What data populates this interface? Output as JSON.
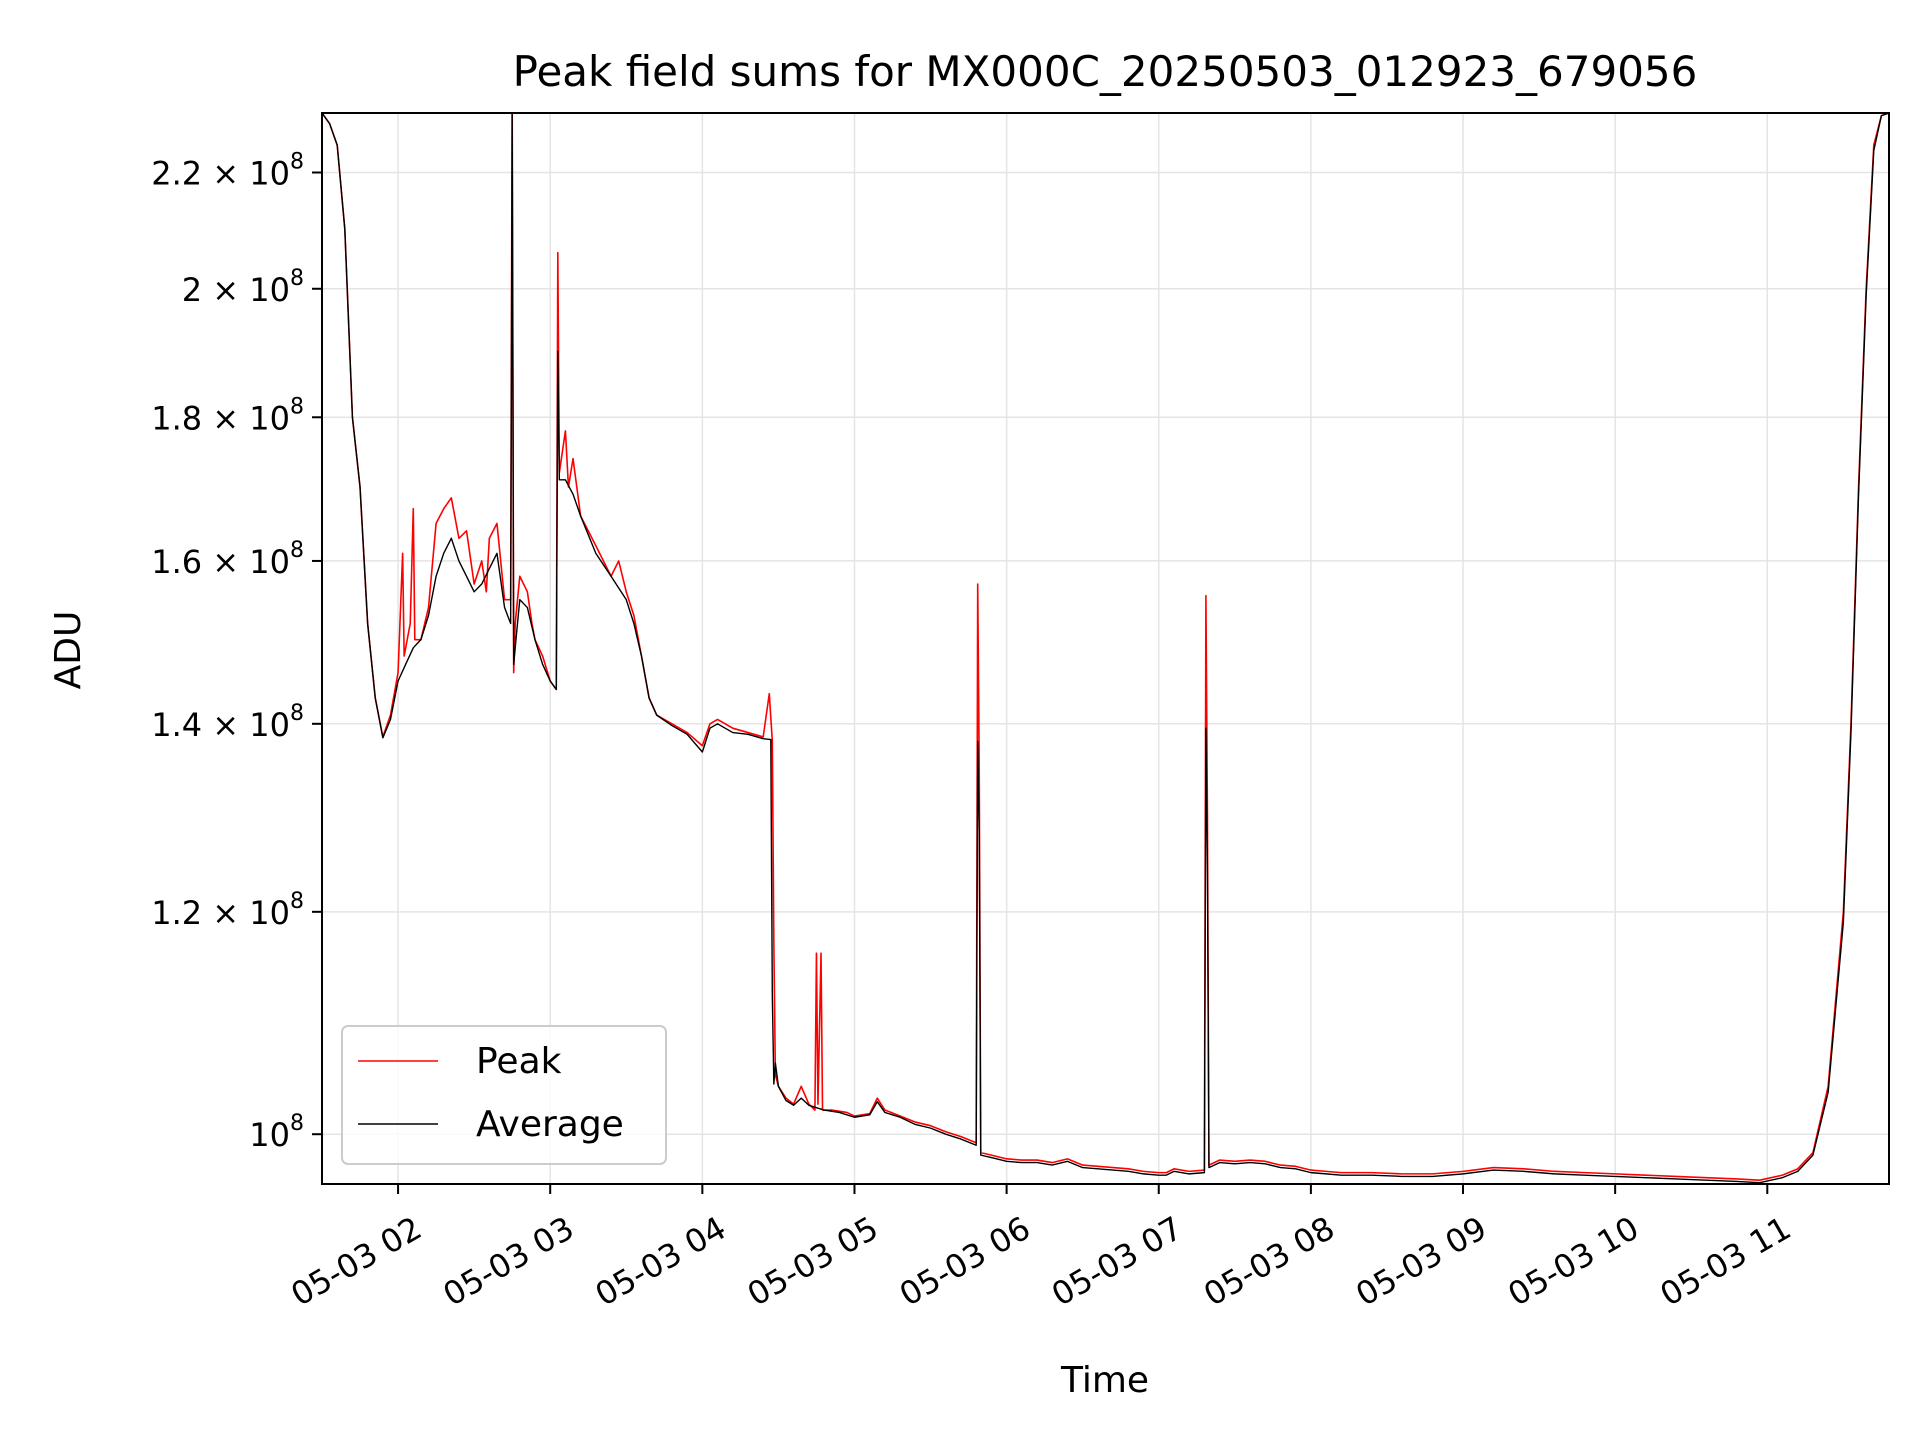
{
  "chart_data": {
    "type": "line",
    "title": "Peak field sums for MX000C_20250503_012923_679056",
    "xlabel": "Time",
    "ylabel": "ADU",
    "y_scale": "log",
    "ylim": [
      96000000,
      231000000
    ],
    "xlim_hours": [
      1.5,
      11.8
    ],
    "grid": true,
    "legend_position": "lower-left",
    "x_ticks": [
      {
        "hour": 2,
        "label": "05-03 02"
      },
      {
        "hour": 3,
        "label": "05-03 03"
      },
      {
        "hour": 4,
        "label": "05-03 04"
      },
      {
        "hour": 5,
        "label": "05-03 05"
      },
      {
        "hour": 6,
        "label": "05-03 06"
      },
      {
        "hour": 7,
        "label": "05-03 07"
      },
      {
        "hour": 8,
        "label": "05-03 08"
      },
      {
        "hour": 9,
        "label": "05-03 09"
      },
      {
        "hour": 10,
        "label": "05-03 10"
      },
      {
        "hour": 11,
        "label": "05-03 11"
      }
    ],
    "y_ticks": [
      {
        "value": 100000000,
        "mantissa": "",
        "exponent": "8"
      },
      {
        "value": 120000000,
        "mantissa": "1.2",
        "exponent": "8"
      },
      {
        "value": 140000000,
        "mantissa": "1.4",
        "exponent": "8"
      },
      {
        "value": 160000000,
        "mantissa": "1.6",
        "exponent": "8"
      },
      {
        "value": 180000000,
        "mantissa": "1.8",
        "exponent": "8"
      },
      {
        "value": 200000000,
        "mantissa": "2",
        "exponent": "8"
      },
      {
        "value": 220000000,
        "mantissa": "2.2",
        "exponent": "8"
      }
    ],
    "series": [
      {
        "name": "Peak",
        "color": "#ff0000",
        "points": [
          [
            1.5,
            231000000
          ],
          [
            1.55,
            229000000
          ],
          [
            1.6,
            225000000
          ],
          [
            1.65,
            210000000
          ],
          [
            1.7,
            180000000
          ],
          [
            1.75,
            170000000
          ],
          [
            1.8,
            152000000
          ],
          [
            1.85,
            143000000
          ],
          [
            1.9,
            138500000
          ],
          [
            1.95,
            141000000
          ],
          [
            2.0,
            146000000
          ],
          [
            2.03,
            161000000
          ],
          [
            2.04,
            148000000
          ],
          [
            2.08,
            152000000
          ],
          [
            2.1,
            167000000
          ],
          [
            2.11,
            150000000
          ],
          [
            2.15,
            150000000
          ],
          [
            2.2,
            154000000
          ],
          [
            2.25,
            165000000
          ],
          [
            2.3,
            167000000
          ],
          [
            2.35,
            168500000
          ],
          [
            2.4,
            163000000
          ],
          [
            2.45,
            164000000
          ],
          [
            2.5,
            157000000
          ],
          [
            2.55,
            160000000
          ],
          [
            2.58,
            156000000
          ],
          [
            2.6,
            163000000
          ],
          [
            2.65,
            165000000
          ],
          [
            2.7,
            155000000
          ],
          [
            2.72,
            155000000
          ],
          [
            2.74,
            155000000
          ],
          [
            2.75,
            235000000
          ],
          [
            2.76,
            146000000
          ],
          [
            2.77,
            152000000
          ],
          [
            2.8,
            158000000
          ],
          [
            2.85,
            156000000
          ],
          [
            2.88,
            152000000
          ],
          [
            2.9,
            150000000
          ],
          [
            2.95,
            148000000
          ],
          [
            3.0,
            145000000
          ],
          [
            3.04,
            144000000
          ],
          [
            3.05,
            206000000
          ],
          [
            3.06,
            172000000
          ],
          [
            3.1,
            178000000
          ],
          [
            3.12,
            170000000
          ],
          [
            3.15,
            174000000
          ],
          [
            3.2,
            166000000
          ],
          [
            3.3,
            162000000
          ],
          [
            3.4,
            158000000
          ],
          [
            3.45,
            160000000
          ],
          [
            3.5,
            156000000
          ],
          [
            3.55,
            153000000
          ],
          [
            3.6,
            148000000
          ],
          [
            3.65,
            143000000
          ],
          [
            3.7,
            141000000
          ],
          [
            3.8,
            140000000
          ],
          [
            3.9,
            139000000
          ],
          [
            4.0,
            137500000
          ],
          [
            4.05,
            140000000
          ],
          [
            4.1,
            140500000
          ],
          [
            4.2,
            139500000
          ],
          [
            4.3,
            139000000
          ],
          [
            4.4,
            138500000
          ],
          [
            4.44,
            143500000
          ],
          [
            4.46,
            138000000
          ],
          [
            4.47,
            117000000
          ],
          [
            4.48,
            105000000
          ],
          [
            4.5,
            104000000
          ],
          [
            4.55,
            103000000
          ],
          [
            4.6,
            102500000
          ],
          [
            4.65,
            104000000
          ],
          [
            4.7,
            102500000
          ],
          [
            4.74,
            102000000
          ],
          [
            4.75,
            116000000
          ],
          [
            4.76,
            102500000
          ],
          [
            4.78,
            116000000
          ],
          [
            4.79,
            102000000
          ],
          [
            4.85,
            102000000
          ],
          [
            4.95,
            101800000
          ],
          [
            5.0,
            101500000
          ],
          [
            5.1,
            101700000
          ],
          [
            5.15,
            103000000
          ],
          [
            5.2,
            102000000
          ],
          [
            5.3,
            101500000
          ],
          [
            5.4,
            101000000
          ],
          [
            5.5,
            100700000
          ],
          [
            5.6,
            100200000
          ],
          [
            5.7,
            99800000
          ],
          [
            5.8,
            99300000
          ],
          [
            5.81,
            157000000
          ],
          [
            5.82,
            135000000
          ],
          [
            5.83,
            98500000
          ],
          [
            5.9,
            98300000
          ],
          [
            6.0,
            98000000
          ],
          [
            6.1,
            97900000
          ],
          [
            6.2,
            97900000
          ],
          [
            6.3,
            97700000
          ],
          [
            6.4,
            98000000
          ],
          [
            6.5,
            97500000
          ],
          [
            6.6,
            97400000
          ],
          [
            6.7,
            97300000
          ],
          [
            6.8,
            97200000
          ],
          [
            6.9,
            97000000
          ],
          [
            7.0,
            96900000
          ],
          [
            7.05,
            96900000
          ],
          [
            7.1,
            97200000
          ],
          [
            7.2,
            97000000
          ],
          [
            7.3,
            97100000
          ],
          [
            7.31,
            155500000
          ],
          [
            7.32,
            130000000
          ],
          [
            7.33,
            97500000
          ],
          [
            7.4,
            97900000
          ],
          [
            7.5,
            97800000
          ],
          [
            7.6,
            97900000
          ],
          [
            7.7,
            97800000
          ],
          [
            7.8,
            97500000
          ],
          [
            7.9,
            97400000
          ],
          [
            8.0,
            97100000
          ],
          [
            8.1,
            97000000
          ],
          [
            8.2,
            96900000
          ],
          [
            8.4,
            96900000
          ],
          [
            8.6,
            96800000
          ],
          [
            8.8,
            96800000
          ],
          [
            9.0,
            97000000
          ],
          [
            9.2,
            97300000
          ],
          [
            9.4,
            97200000
          ],
          [
            9.6,
            97000000
          ],
          [
            9.8,
            96900000
          ],
          [
            10.0,
            96800000
          ],
          [
            10.2,
            96700000
          ],
          [
            10.4,
            96600000
          ],
          [
            10.6,
            96500000
          ],
          [
            10.8,
            96400000
          ],
          [
            10.95,
            96300000
          ],
          [
            11.1,
            96700000
          ],
          [
            11.2,
            97200000
          ],
          [
            11.3,
            98500000
          ],
          [
            11.4,
            104000000
          ],
          [
            11.5,
            120000000
          ],
          [
            11.55,
            140000000
          ],
          [
            11.6,
            170000000
          ],
          [
            11.65,
            200000000
          ],
          [
            11.7,
            225000000
          ],
          [
            11.75,
            230500000
          ],
          [
            11.8,
            231000000
          ]
        ]
      },
      {
        "name": "Average",
        "color": "#000000",
        "points": [
          [
            1.5,
            231000000
          ],
          [
            1.55,
            229000000
          ],
          [
            1.6,
            225000000
          ],
          [
            1.65,
            210000000
          ],
          [
            1.7,
            180000000
          ],
          [
            1.75,
            170000000
          ],
          [
            1.8,
            152000000
          ],
          [
            1.85,
            143000000
          ],
          [
            1.9,
            138400000
          ],
          [
            1.95,
            140500000
          ],
          [
            2.0,
            145000000
          ],
          [
            2.05,
            147000000
          ],
          [
            2.1,
            149000000
          ],
          [
            2.15,
            150000000
          ],
          [
            2.2,
            153000000
          ],
          [
            2.25,
            158000000
          ],
          [
            2.3,
            161000000
          ],
          [
            2.35,
            163000000
          ],
          [
            2.4,
            160000000
          ],
          [
            2.45,
            158000000
          ],
          [
            2.5,
            156000000
          ],
          [
            2.55,
            157000000
          ],
          [
            2.6,
            159000000
          ],
          [
            2.65,
            161000000
          ],
          [
            2.7,
            154000000
          ],
          [
            2.74,
            152000000
          ],
          [
            2.75,
            231000000
          ],
          [
            2.76,
            147000000
          ],
          [
            2.78,
            151000000
          ],
          [
            2.8,
            155000000
          ],
          [
            2.85,
            154000000
          ],
          [
            2.9,
            150000000
          ],
          [
            2.95,
            147000000
          ],
          [
            3.0,
            145000000
          ],
          [
            3.04,
            144000000
          ],
          [
            3.05,
            190000000
          ],
          [
            3.06,
            171000000
          ],
          [
            3.1,
            171000000
          ],
          [
            3.15,
            169000000
          ],
          [
            3.2,
            166000000
          ],
          [
            3.3,
            161000000
          ],
          [
            3.4,
            158000000
          ],
          [
            3.5,
            155000000
          ],
          [
            3.55,
            152000000
          ],
          [
            3.6,
            148000000
          ],
          [
            3.65,
            143000000
          ],
          [
            3.7,
            141000000
          ],
          [
            3.8,
            139800000
          ],
          [
            3.9,
            138800000
          ],
          [
            4.0,
            136800000
          ],
          [
            4.05,
            139500000
          ],
          [
            4.1,
            140000000
          ],
          [
            4.2,
            139000000
          ],
          [
            4.3,
            138800000
          ],
          [
            4.4,
            138300000
          ],
          [
            4.45,
            138200000
          ],
          [
            4.46,
            112000000
          ],
          [
            4.47,
            104200000
          ],
          [
            4.48,
            106000000
          ],
          [
            4.5,
            104000000
          ],
          [
            4.55,
            102800000
          ],
          [
            4.6,
            102400000
          ],
          [
            4.65,
            103000000
          ],
          [
            4.7,
            102400000
          ],
          [
            4.8,
            102000000
          ],
          [
            4.9,
            101800000
          ],
          [
            5.0,
            101400000
          ],
          [
            5.1,
            101600000
          ],
          [
            5.15,
            102700000
          ],
          [
            5.2,
            101800000
          ],
          [
            5.3,
            101400000
          ],
          [
            5.4,
            100800000
          ],
          [
            5.5,
            100500000
          ],
          [
            5.6,
            100000000
          ],
          [
            5.7,
            99600000
          ],
          [
            5.8,
            99100000
          ],
          [
            5.81,
            138000000
          ],
          [
            5.82,
            128000000
          ],
          [
            5.83,
            98300000
          ],
          [
            5.9,
            98100000
          ],
          [
            6.0,
            97800000
          ],
          [
            6.1,
            97700000
          ],
          [
            6.2,
            97700000
          ],
          [
            6.3,
            97500000
          ],
          [
            6.4,
            97800000
          ],
          [
            6.5,
            97300000
          ],
          [
            6.6,
            97200000
          ],
          [
            6.7,
            97100000
          ],
          [
            6.8,
            97000000
          ],
          [
            6.9,
            96800000
          ],
          [
            7.0,
            96700000
          ],
          [
            7.05,
            96700000
          ],
          [
            7.1,
            97000000
          ],
          [
            7.2,
            96800000
          ],
          [
            7.3,
            96900000
          ],
          [
            7.31,
            139500000
          ],
          [
            7.32,
            124000000
          ],
          [
            7.33,
            97300000
          ],
          [
            7.4,
            97700000
          ],
          [
            7.5,
            97600000
          ],
          [
            7.6,
            97700000
          ],
          [
            7.7,
            97600000
          ],
          [
            7.8,
            97300000
          ],
          [
            7.9,
            97200000
          ],
          [
            8.0,
            96900000
          ],
          [
            8.1,
            96800000
          ],
          [
            8.2,
            96700000
          ],
          [
            8.4,
            96700000
          ],
          [
            8.6,
            96600000
          ],
          [
            8.8,
            96600000
          ],
          [
            9.0,
            96800000
          ],
          [
            9.2,
            97100000
          ],
          [
            9.4,
            97000000
          ],
          [
            9.6,
            96800000
          ],
          [
            9.8,
            96700000
          ],
          [
            10.0,
            96600000
          ],
          [
            10.2,
            96500000
          ],
          [
            10.4,
            96400000
          ],
          [
            10.6,
            96300000
          ],
          [
            10.8,
            96200000
          ],
          [
            10.95,
            96100000
          ],
          [
            11.1,
            96500000
          ],
          [
            11.2,
            97000000
          ],
          [
            11.3,
            98300000
          ],
          [
            11.4,
            103500000
          ],
          [
            11.5,
            119000000
          ],
          [
            11.55,
            139000000
          ],
          [
            11.6,
            169000000
          ],
          [
            11.65,
            199000000
          ],
          [
            11.7,
            224000000
          ],
          [
            11.75,
            230500000
          ],
          [
            11.8,
            231000000
          ]
        ]
      }
    ]
  }
}
